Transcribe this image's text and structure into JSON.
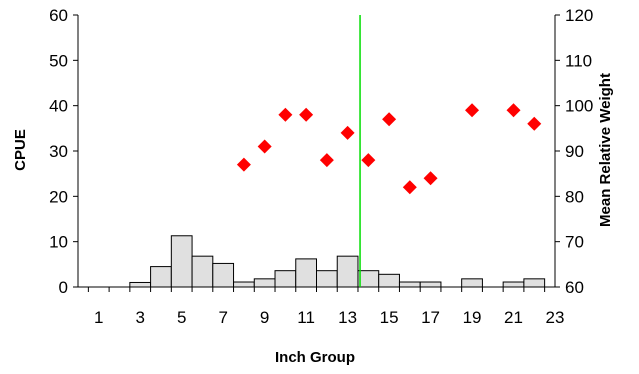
{
  "chart_data": {
    "type": "bar",
    "title": "",
    "xlabel": "Inch Group",
    "ylabel": "CPUE",
    "y2label": "Mean Relative Weight",
    "x_ticks": [
      "1",
      "3",
      "5",
      "7",
      "9",
      "11",
      "13",
      "15",
      "17",
      "19",
      "21",
      "23"
    ],
    "x_range": [
      0,
      23
    ],
    "ylim": [
      0,
      60
    ],
    "y_ticks": [
      "0",
      "10",
      "20",
      "30",
      "40",
      "50",
      "60"
    ],
    "y2lim": [
      60,
      120
    ],
    "y2_ticks": [
      "60",
      "70",
      "80",
      "90",
      "100",
      "110",
      "120"
    ],
    "grid": false,
    "series": [
      {
        "kind": "bar",
        "axis": "left",
        "x": [
          1,
          2,
          3,
          4,
          5,
          6,
          7,
          8,
          9,
          10,
          11,
          12,
          13,
          14,
          15,
          16,
          17,
          18,
          19,
          20,
          21,
          22
        ],
        "values": [
          0,
          0,
          1,
          4.5,
          11.3,
          6.8,
          5.2,
          1.1,
          1.8,
          3.6,
          6.2,
          3.6,
          6.8,
          3.6,
          2.8,
          1.1,
          1.1,
          0,
          1.8,
          0,
          1.1,
          1.8
        ]
      },
      {
        "kind": "scatter",
        "axis": "right",
        "marker": "diamond",
        "color": "#ff0000",
        "x": [
          8,
          9,
          10,
          11,
          12,
          13,
          14,
          15,
          16,
          17,
          19,
          21,
          22
        ],
        "values": [
          87,
          91,
          98,
          98,
          88,
          94,
          88,
          97,
          82,
          84,
          99,
          99,
          96
        ]
      }
    ],
    "reference_line": {
      "x": 13.6,
      "color": "#00dd00"
    },
    "colors": {
      "bar_fill": "#e0e0e0",
      "bar_stroke": "#000000",
      "marker": "#ff0000",
      "line": "#00dd00"
    }
  }
}
